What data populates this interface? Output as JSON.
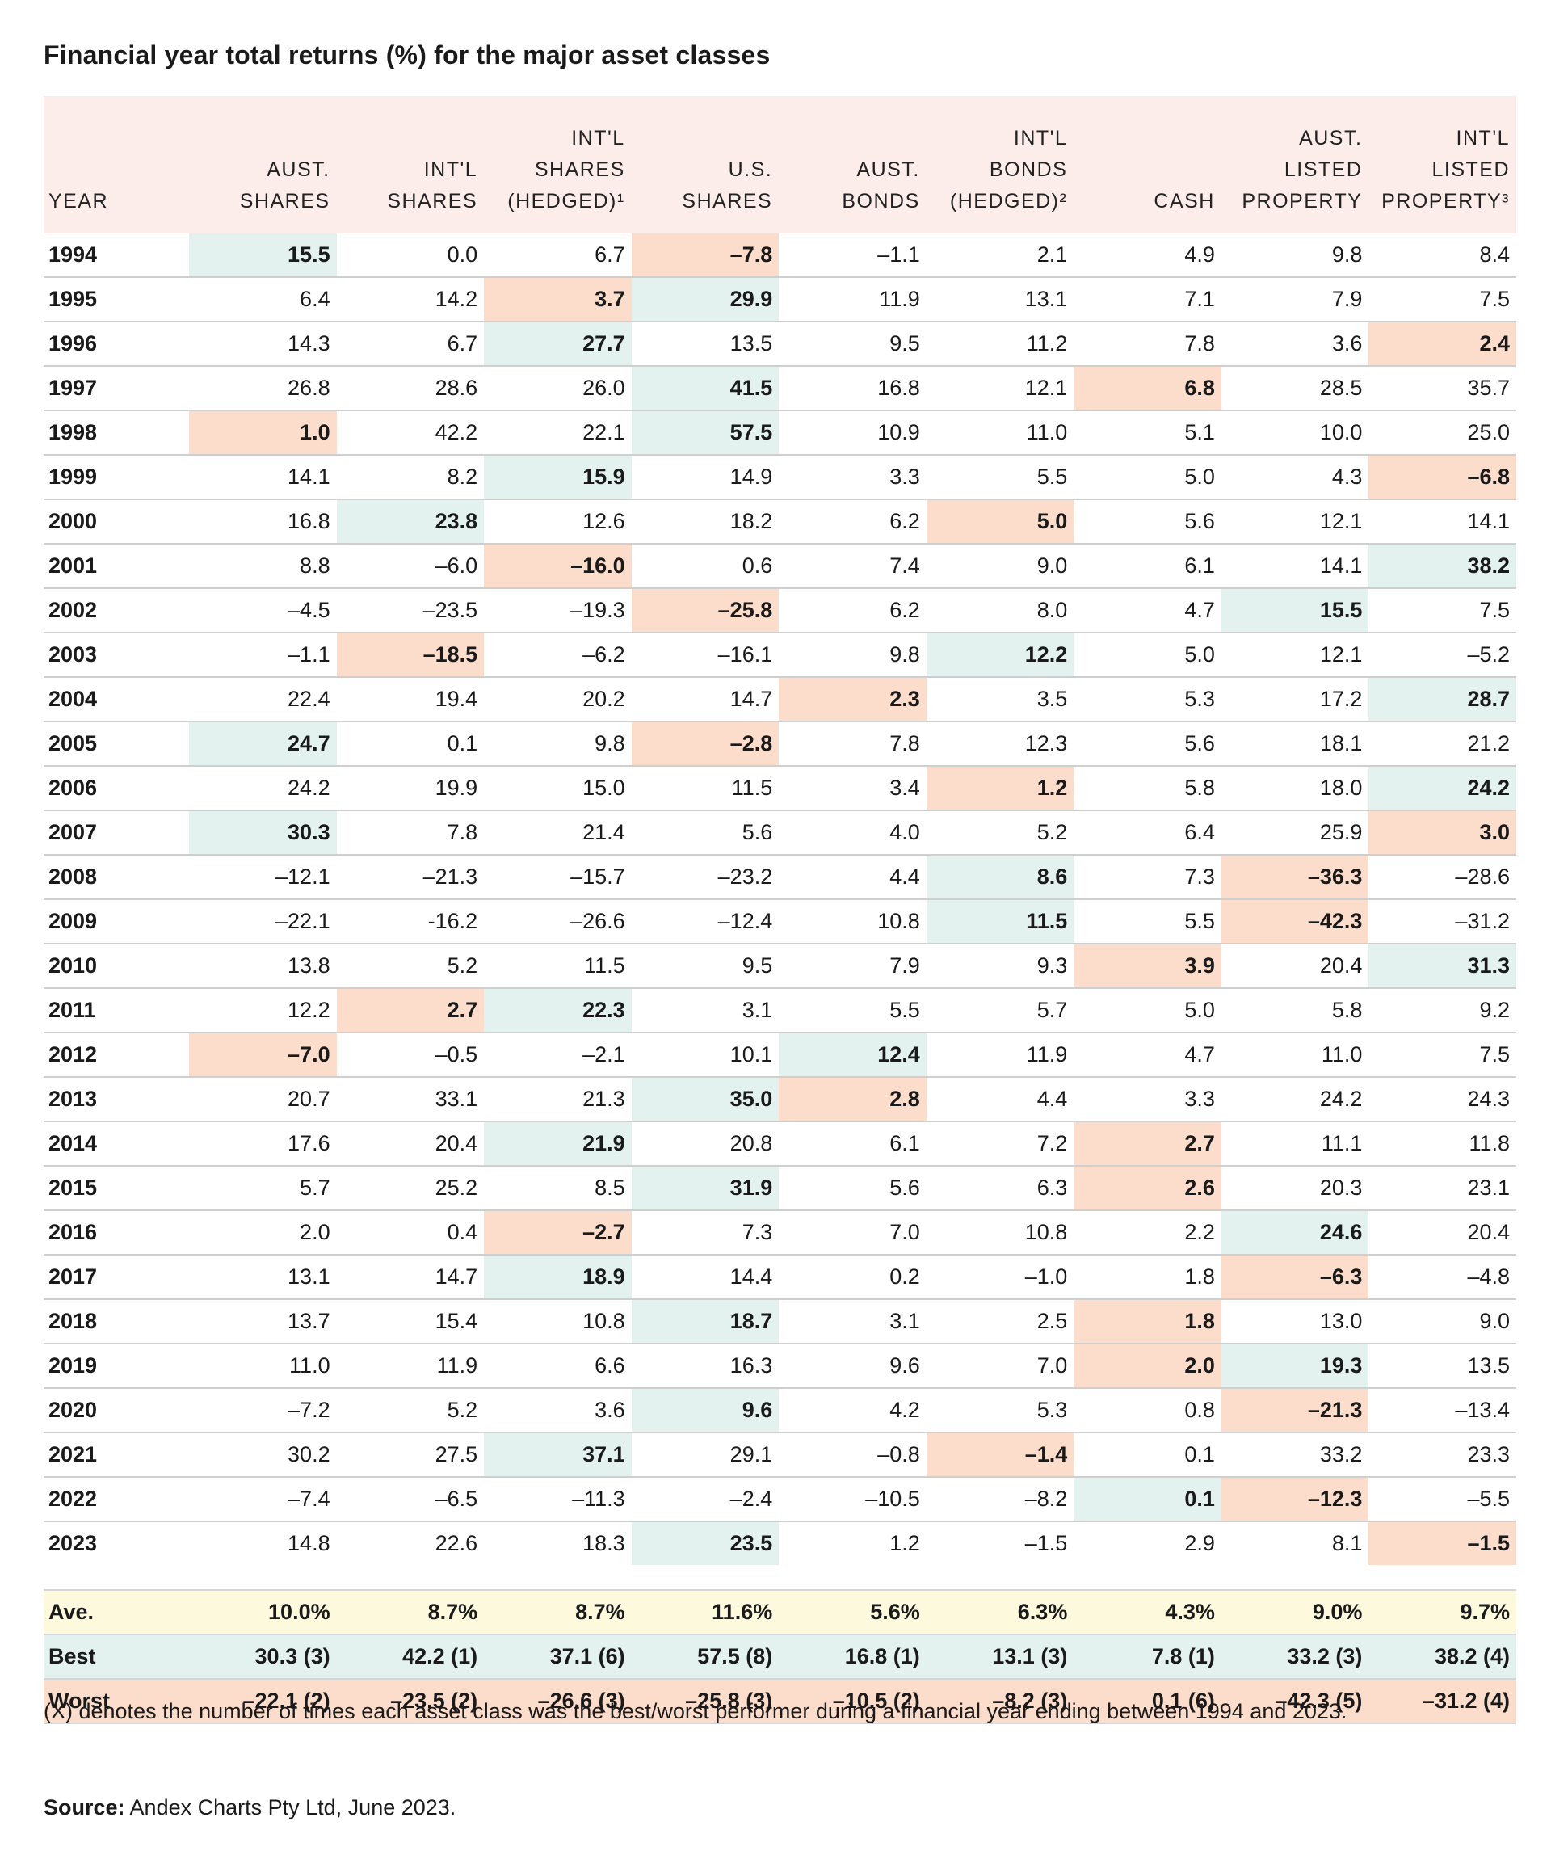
{
  "title": "Financial year total returns (%) for the major asset classes",
  "chart_data": {
    "type": "table",
    "title": "Financial year total returns (%) for the major asset classes",
    "header": {
      "year": "YEAR",
      "columns": [
        {
          "l1": "",
          "l2": "AUST.",
          "l3": "SHARES"
        },
        {
          "l1": "",
          "l2": "INT'L",
          "l3": "SHARES"
        },
        {
          "l1": "INT'L",
          "l2": "SHARES",
          "l3": "(HEDGED)¹"
        },
        {
          "l1": "",
          "l2": "U.S.",
          "l3": "SHARES"
        },
        {
          "l1": "",
          "l2": "AUST.",
          "l3": "BONDS"
        },
        {
          "l1": "INT'L",
          "l2": "BONDS",
          "l3": "(HEDGED)²"
        },
        {
          "l1": "",
          "l2": "",
          "l3": "CASH"
        },
        {
          "l1": "",
          "l2": "AUST.",
          "l3": "LISTED PROPERTY"
        },
        {
          "l1": "INT'L",
          "l2": "LISTED",
          "l3": "PROPERTY³"
        }
      ]
    },
    "rows": [
      {
        "year": "1994",
        "values": [
          "15.5",
          "0.0",
          "6.7",
          "–7.8",
          "–1.1",
          "2.1",
          "4.9",
          "9.8",
          "8.4"
        ],
        "best": 0,
        "worst": 3
      },
      {
        "year": "1995",
        "values": [
          "6.4",
          "14.2",
          "3.7",
          "29.9",
          "11.9",
          "13.1",
          "7.1",
          "7.9",
          "7.5"
        ],
        "best": 3,
        "worst": 2
      },
      {
        "year": "1996",
        "values": [
          "14.3",
          "6.7",
          "27.7",
          "13.5",
          "9.5",
          "11.2",
          "7.8",
          "3.6",
          "2.4"
        ],
        "best": 2,
        "worst": 8
      },
      {
        "year": "1997",
        "values": [
          "26.8",
          "28.6",
          "26.0",
          "41.5",
          "16.8",
          "12.1",
          "6.8",
          "28.5",
          "35.7"
        ],
        "best": 3,
        "worst": 6
      },
      {
        "year": "1998",
        "values": [
          "1.0",
          "42.2",
          "22.1",
          "57.5",
          "10.9",
          "11.0",
          "5.1",
          "10.0",
          "25.0"
        ],
        "best": 3,
        "worst": 0
      },
      {
        "year": "1999",
        "values": [
          "14.1",
          "8.2",
          "15.9",
          "14.9",
          "3.3",
          "5.5",
          "5.0",
          "4.3",
          "–6.8"
        ],
        "best": 2,
        "worst": 8
      },
      {
        "year": "2000",
        "values": [
          "16.8",
          "23.8",
          "12.6",
          "18.2",
          "6.2",
          "5.0",
          "5.6",
          "12.1",
          "14.1"
        ],
        "best": 1,
        "worst": 5
      },
      {
        "year": "2001",
        "values": [
          "8.8",
          "–6.0",
          "–16.0",
          "0.6",
          "7.4",
          "9.0",
          "6.1",
          "14.1",
          "38.2"
        ],
        "best": 8,
        "worst": 2
      },
      {
        "year": "2002",
        "values": [
          "–4.5",
          "–23.5",
          "–19.3",
          "–25.8",
          "6.2",
          "8.0",
          "4.7",
          "15.5",
          "7.5"
        ],
        "best": 7,
        "worst": 3
      },
      {
        "year": "2003",
        "values": [
          "–1.1",
          "–18.5",
          "–6.2",
          "–16.1",
          "9.8",
          "12.2",
          "5.0",
          "12.1",
          "–5.2"
        ],
        "best": 5,
        "worst": 1
      },
      {
        "year": "2004",
        "values": [
          "22.4",
          "19.4",
          "20.2",
          "14.7",
          "2.3",
          "3.5",
          "5.3",
          "17.2",
          "28.7"
        ],
        "best": 8,
        "worst": 4
      },
      {
        "year": "2005",
        "values": [
          "24.7",
          "0.1",
          "9.8",
          "–2.8",
          "7.8",
          "12.3",
          "5.6",
          "18.1",
          "21.2"
        ],
        "best": 0,
        "worst": 3
      },
      {
        "year": "2006",
        "values": [
          "24.2",
          "19.9",
          "15.0",
          "11.5",
          "3.4",
          "1.2",
          "5.8",
          "18.0",
          "24.2"
        ],
        "best": 8,
        "worst": 5
      },
      {
        "year": "2007",
        "values": [
          "30.3",
          "7.8",
          "21.4",
          "5.6",
          "4.0",
          "5.2",
          "6.4",
          "25.9",
          "3.0"
        ],
        "best": 0,
        "worst": 8
      },
      {
        "year": "2008",
        "values": [
          "–12.1",
          "–21.3",
          "–15.7",
          "–23.2",
          "4.4",
          "8.6",
          "7.3",
          "–36.3",
          "–28.6"
        ],
        "best": 5,
        "worst": 7
      },
      {
        "year": "2009",
        "values": [
          "–22.1",
          "-16.2",
          "–26.6",
          "–12.4",
          "10.8",
          "11.5",
          "5.5",
          "–42.3",
          "–31.2"
        ],
        "best": 5,
        "worst": 7
      },
      {
        "year": "2010",
        "values": [
          "13.8",
          "5.2",
          "11.5",
          "9.5",
          "7.9",
          "9.3",
          "3.9",
          "20.4",
          "31.3"
        ],
        "best": 8,
        "worst": 6
      },
      {
        "year": "2011",
        "values": [
          "12.2",
          "2.7",
          "22.3",
          "3.1",
          "5.5",
          "5.7",
          "5.0",
          "5.8",
          "9.2"
        ],
        "best": 2,
        "worst": 1
      },
      {
        "year": "2012",
        "values": [
          "–7.0",
          "–0.5",
          "–2.1",
          "10.1",
          "12.4",
          "11.9",
          "4.7",
          "11.0",
          "7.5"
        ],
        "best": 4,
        "worst": 0
      },
      {
        "year": "2013",
        "values": [
          "20.7",
          "33.1",
          "21.3",
          "35.0",
          "2.8",
          "4.4",
          "3.3",
          "24.2",
          "24.3"
        ],
        "best": 3,
        "worst": 4
      },
      {
        "year": "2014",
        "values": [
          "17.6",
          "20.4",
          "21.9",
          "20.8",
          "6.1",
          "7.2",
          "2.7",
          "11.1",
          "11.8"
        ],
        "best": 2,
        "worst": 6
      },
      {
        "year": "2015",
        "values": [
          "5.7",
          "25.2",
          "8.5",
          "31.9",
          "5.6",
          "6.3",
          "2.6",
          "20.3",
          "23.1"
        ],
        "best": 3,
        "worst": 6
      },
      {
        "year": "2016",
        "values": [
          "2.0",
          "0.4",
          "–2.7",
          "7.3",
          "7.0",
          "10.8",
          "2.2",
          "24.6",
          "20.4"
        ],
        "best": 7,
        "worst": 2
      },
      {
        "year": "2017",
        "values": [
          "13.1",
          "14.7",
          "18.9",
          "14.4",
          "0.2",
          "–1.0",
          "1.8",
          "–6.3",
          "–4.8"
        ],
        "best": 2,
        "worst": 7
      },
      {
        "year": "2018",
        "values": [
          "13.7",
          "15.4",
          "10.8",
          "18.7",
          "3.1",
          "2.5",
          "1.8",
          "13.0",
          "9.0"
        ],
        "best": 3,
        "worst": 6
      },
      {
        "year": "2019",
        "values": [
          "11.0",
          "11.9",
          "6.6",
          "16.3",
          "9.6",
          "7.0",
          "2.0",
          "19.3",
          "13.5"
        ],
        "best": 7,
        "worst": 6
      },
      {
        "year": "2020",
        "values": [
          "–7.2",
          "5.2",
          "3.6",
          "9.6",
          "4.2",
          "5.3",
          "0.8",
          "–21.3",
          "–13.4"
        ],
        "best": 3,
        "worst": 7
      },
      {
        "year": "2021",
        "values": [
          "30.2",
          "27.5",
          "37.1",
          "29.1",
          "–0.8",
          "–1.4",
          "0.1",
          "33.2",
          "23.3"
        ],
        "best": 2,
        "worst": 5
      },
      {
        "year": "2022",
        "values": [
          "–7.4",
          "–6.5",
          "–11.3",
          "–2.4",
          "–10.5",
          "–8.2",
          "0.1",
          "–12.3",
          "–5.5"
        ],
        "best": 6,
        "worst": 7
      },
      {
        "year": "2023",
        "values": [
          "14.8",
          "22.6",
          "18.3",
          "23.5",
          "1.2",
          "–1.5",
          "2.9",
          "8.1",
          "–1.5"
        ],
        "best": 3,
        "worst": 8
      }
    ],
    "summary": {
      "average": {
        "label": "Ave.",
        "values": [
          "10.0%",
          "8.7%",
          "8.7%",
          "11.6%",
          "5.6%",
          "6.3%",
          "4.3%",
          "9.0%",
          "9.7%"
        ]
      },
      "best": {
        "label": "Best",
        "values": [
          "30.3 (3)",
          "42.2 (1)",
          "37.1 (6)",
          "57.5 (8)",
          "16.8 (1)",
          "13.1 (3)",
          "7.8 (1)",
          "33.2 (3)",
          "38.2 (4)"
        ]
      },
      "worst": {
        "label": "Worst",
        "values": [
          "–22.1 (2)",
          "–23.5 (2)",
          "–26.6 (3)",
          "–25.8 (3)",
          "–10.5 (2)",
          "–8.2 (3)",
          "0.1 (6)",
          "–42.3 (5)",
          "–31.2 (4)"
        ]
      }
    }
  },
  "note": "(X) denotes the number of times each asset class was the best/worst performer during a financial year ending between 1994 and 2023.",
  "source": {
    "label": "Source:",
    "text": " Andex Charts Pty Ltd, June 2023."
  },
  "colors": {
    "header_bg": "#fcecea",
    "best_bg": "#e3f2ef",
    "worst_bg": "#fcdccb",
    "average_bg": "#fcf9dd"
  }
}
